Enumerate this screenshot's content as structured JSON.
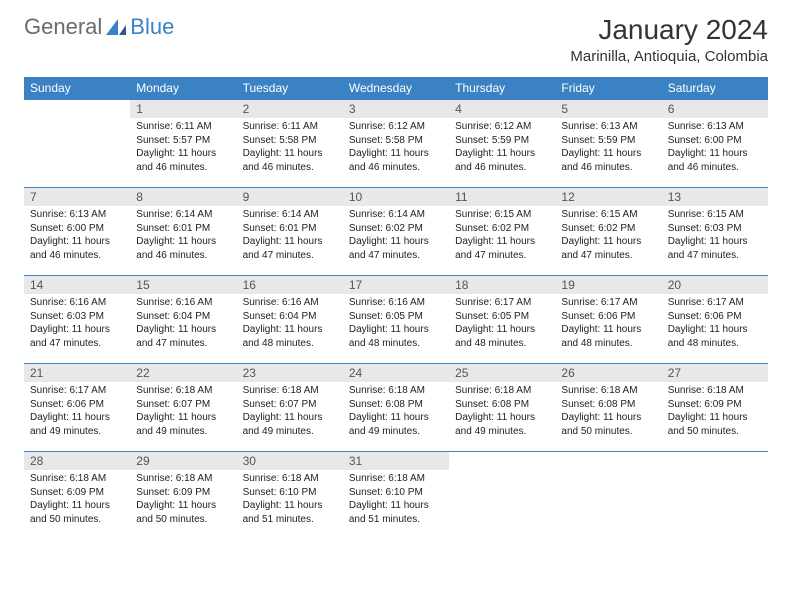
{
  "brand": {
    "part1": "General",
    "part2": "Blue"
  },
  "title": "January 2024",
  "location": "Marinilla, Antioquia, Colombia",
  "colors": {
    "header_bg": "#3b82c4",
    "header_fg": "#ffffff",
    "daynum_bg": "#e8e8e8",
    "daynum_fg": "#555555",
    "border": "#3b82c4",
    "text": "#222222",
    "page_bg": "#ffffff"
  },
  "typography": {
    "title_fontsize": 28,
    "location_fontsize": 15,
    "weekday_fontsize": 12,
    "daynum_fontsize": 12,
    "body_fontsize": 10
  },
  "weekdays": [
    "Sunday",
    "Monday",
    "Tuesday",
    "Wednesday",
    "Thursday",
    "Friday",
    "Saturday"
  ],
  "first_weekday_index": 1,
  "days": [
    {
      "n": 1,
      "sunrise": "6:11 AM",
      "sunset": "5:57 PM",
      "daylight": "11 hours and 46 minutes."
    },
    {
      "n": 2,
      "sunrise": "6:11 AM",
      "sunset": "5:58 PM",
      "daylight": "11 hours and 46 minutes."
    },
    {
      "n": 3,
      "sunrise": "6:12 AM",
      "sunset": "5:58 PM",
      "daylight": "11 hours and 46 minutes."
    },
    {
      "n": 4,
      "sunrise": "6:12 AM",
      "sunset": "5:59 PM",
      "daylight": "11 hours and 46 minutes."
    },
    {
      "n": 5,
      "sunrise": "6:13 AM",
      "sunset": "5:59 PM",
      "daylight": "11 hours and 46 minutes."
    },
    {
      "n": 6,
      "sunrise": "6:13 AM",
      "sunset": "6:00 PM",
      "daylight": "11 hours and 46 minutes."
    },
    {
      "n": 7,
      "sunrise": "6:13 AM",
      "sunset": "6:00 PM",
      "daylight": "11 hours and 46 minutes."
    },
    {
      "n": 8,
      "sunrise": "6:14 AM",
      "sunset": "6:01 PM",
      "daylight": "11 hours and 46 minutes."
    },
    {
      "n": 9,
      "sunrise": "6:14 AM",
      "sunset": "6:01 PM",
      "daylight": "11 hours and 47 minutes."
    },
    {
      "n": 10,
      "sunrise": "6:14 AM",
      "sunset": "6:02 PM",
      "daylight": "11 hours and 47 minutes."
    },
    {
      "n": 11,
      "sunrise": "6:15 AM",
      "sunset": "6:02 PM",
      "daylight": "11 hours and 47 minutes."
    },
    {
      "n": 12,
      "sunrise": "6:15 AM",
      "sunset": "6:02 PM",
      "daylight": "11 hours and 47 minutes."
    },
    {
      "n": 13,
      "sunrise": "6:15 AM",
      "sunset": "6:03 PM",
      "daylight": "11 hours and 47 minutes."
    },
    {
      "n": 14,
      "sunrise": "6:16 AM",
      "sunset": "6:03 PM",
      "daylight": "11 hours and 47 minutes."
    },
    {
      "n": 15,
      "sunrise": "6:16 AM",
      "sunset": "6:04 PM",
      "daylight": "11 hours and 47 minutes."
    },
    {
      "n": 16,
      "sunrise": "6:16 AM",
      "sunset": "6:04 PM",
      "daylight": "11 hours and 48 minutes."
    },
    {
      "n": 17,
      "sunrise": "6:16 AM",
      "sunset": "6:05 PM",
      "daylight": "11 hours and 48 minutes."
    },
    {
      "n": 18,
      "sunrise": "6:17 AM",
      "sunset": "6:05 PM",
      "daylight": "11 hours and 48 minutes."
    },
    {
      "n": 19,
      "sunrise": "6:17 AM",
      "sunset": "6:06 PM",
      "daylight": "11 hours and 48 minutes."
    },
    {
      "n": 20,
      "sunrise": "6:17 AM",
      "sunset": "6:06 PM",
      "daylight": "11 hours and 48 minutes."
    },
    {
      "n": 21,
      "sunrise": "6:17 AM",
      "sunset": "6:06 PM",
      "daylight": "11 hours and 49 minutes."
    },
    {
      "n": 22,
      "sunrise": "6:18 AM",
      "sunset": "6:07 PM",
      "daylight": "11 hours and 49 minutes."
    },
    {
      "n": 23,
      "sunrise": "6:18 AM",
      "sunset": "6:07 PM",
      "daylight": "11 hours and 49 minutes."
    },
    {
      "n": 24,
      "sunrise": "6:18 AM",
      "sunset": "6:08 PM",
      "daylight": "11 hours and 49 minutes."
    },
    {
      "n": 25,
      "sunrise": "6:18 AM",
      "sunset": "6:08 PM",
      "daylight": "11 hours and 49 minutes."
    },
    {
      "n": 26,
      "sunrise": "6:18 AM",
      "sunset": "6:08 PM",
      "daylight": "11 hours and 50 minutes."
    },
    {
      "n": 27,
      "sunrise": "6:18 AM",
      "sunset": "6:09 PM",
      "daylight": "11 hours and 50 minutes."
    },
    {
      "n": 28,
      "sunrise": "6:18 AM",
      "sunset": "6:09 PM",
      "daylight": "11 hours and 50 minutes."
    },
    {
      "n": 29,
      "sunrise": "6:18 AM",
      "sunset": "6:09 PM",
      "daylight": "11 hours and 50 minutes."
    },
    {
      "n": 30,
      "sunrise": "6:18 AM",
      "sunset": "6:10 PM",
      "daylight": "11 hours and 51 minutes."
    },
    {
      "n": 31,
      "sunrise": "6:18 AM",
      "sunset": "6:10 PM",
      "daylight": "11 hours and 51 minutes."
    }
  ],
  "labels": {
    "sunrise": "Sunrise:",
    "sunset": "Sunset:",
    "daylight": "Daylight:"
  }
}
